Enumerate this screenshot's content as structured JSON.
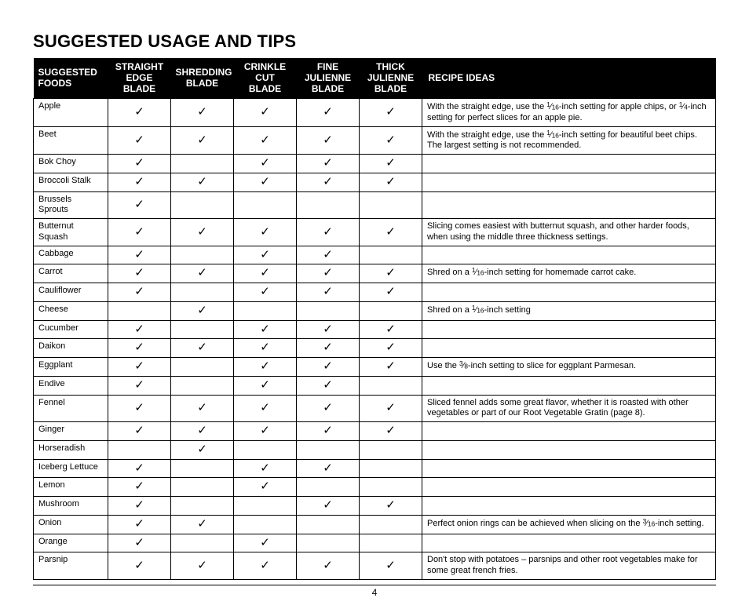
{
  "title": "SUGGESTED USAGE AND TIPS",
  "pageNumber": "4",
  "checkGlyph": "✓",
  "columns": {
    "food": [
      "SUGGESTED",
      "FOODS"
    ],
    "b1": [
      "STRAIGHT EDGE",
      "BLADE"
    ],
    "b2": [
      "SHREDDING",
      "BLADE"
    ],
    "b3": [
      "CRINKLE CUT",
      "BLADE"
    ],
    "b4": [
      "FINE JULIENNE",
      "BLADE"
    ],
    "b5": [
      "THICK JULIENNE",
      "BLADE"
    ],
    "ideas": "RECIPE IDEAS"
  },
  "rows": [
    {
      "food": "Apple",
      "b": [
        1,
        1,
        1,
        1,
        1
      ],
      "idea": "With the straight edge, use the {1/16}-inch setting for apple chips, or {1/4}-inch setting for perfect slices for an apple pie."
    },
    {
      "food": "Beet",
      "b": [
        1,
        1,
        1,
        1,
        1
      ],
      "idea": "With the straight edge, use the {1/16}-inch setting for beautiful beet chips. The largest setting is not recommended."
    },
    {
      "food": "Bok Choy",
      "b": [
        1,
        0,
        1,
        1,
        1
      ],
      "idea": ""
    },
    {
      "food": "Broccoli Stalk",
      "b": [
        1,
        1,
        1,
        1,
        1
      ],
      "idea": ""
    },
    {
      "food": "Brussels Sprouts",
      "b": [
        1,
        0,
        0,
        0,
        0
      ],
      "idea": ""
    },
    {
      "food": "Butternut Squash",
      "b": [
        1,
        1,
        1,
        1,
        1
      ],
      "idea": "Slicing comes easiest with butternut squash, and other harder foods, when using the middle three thickness settings."
    },
    {
      "food": "Cabbage",
      "b": [
        1,
        0,
        1,
        1,
        0
      ],
      "idea": ""
    },
    {
      "food": "Carrot",
      "b": [
        1,
        1,
        1,
        1,
        1
      ],
      "idea": "Shred on a {1/16}-inch setting for homemade carrot cake."
    },
    {
      "food": "Cauliflower",
      "b": [
        1,
        0,
        1,
        1,
        1
      ],
      "idea": ""
    },
    {
      "food": "Cheese",
      "b": [
        0,
        1,
        0,
        0,
        0
      ],
      "idea": "Shred on a {1/16}-inch setting"
    },
    {
      "food": "Cucumber",
      "b": [
        1,
        0,
        1,
        1,
        1
      ],
      "idea": ""
    },
    {
      "food": "Daikon",
      "b": [
        1,
        1,
        1,
        1,
        1
      ],
      "idea": ""
    },
    {
      "food": "Eggplant",
      "b": [
        1,
        0,
        1,
        1,
        1
      ],
      "idea": "Use the {3/8}-inch setting to slice for eggplant Parmesan."
    },
    {
      "food": "Endive",
      "b": [
        1,
        0,
        1,
        1,
        0
      ],
      "idea": ""
    },
    {
      "food": "Fennel",
      "b": [
        1,
        1,
        1,
        1,
        1
      ],
      "idea": "Sliced fennel adds some great flavor, whether it is roasted with other vegetables or part of our Root Vegetable Gratin (page 8)."
    },
    {
      "food": "Ginger",
      "b": [
        1,
        1,
        1,
        1,
        1
      ],
      "idea": ""
    },
    {
      "food": "Horseradish",
      "b": [
        0,
        1,
        0,
        0,
        0
      ],
      "idea": ""
    },
    {
      "food": "Iceberg Lettuce",
      "b": [
        1,
        0,
        1,
        1,
        0
      ],
      "idea": ""
    },
    {
      "food": "Lemon",
      "b": [
        1,
        0,
        1,
        0,
        0
      ],
      "idea": ""
    },
    {
      "food": "Mushroom",
      "b": [
        1,
        0,
        0,
        1,
        1
      ],
      "idea": ""
    },
    {
      "food": "Onion",
      "b": [
        1,
        1,
        0,
        0,
        0
      ],
      "idea": "Perfect onion rings can be achieved when slicing on the {3/16}-inch setting."
    },
    {
      "food": "Orange",
      "b": [
        1,
        0,
        1,
        0,
        0
      ],
      "idea": ""
    },
    {
      "food": "Parsnip",
      "b": [
        1,
        1,
        1,
        1,
        1
      ],
      "idea": "Don't stop with potatoes – parsnips and other root vegetables make for some great french fries."
    }
  ]
}
